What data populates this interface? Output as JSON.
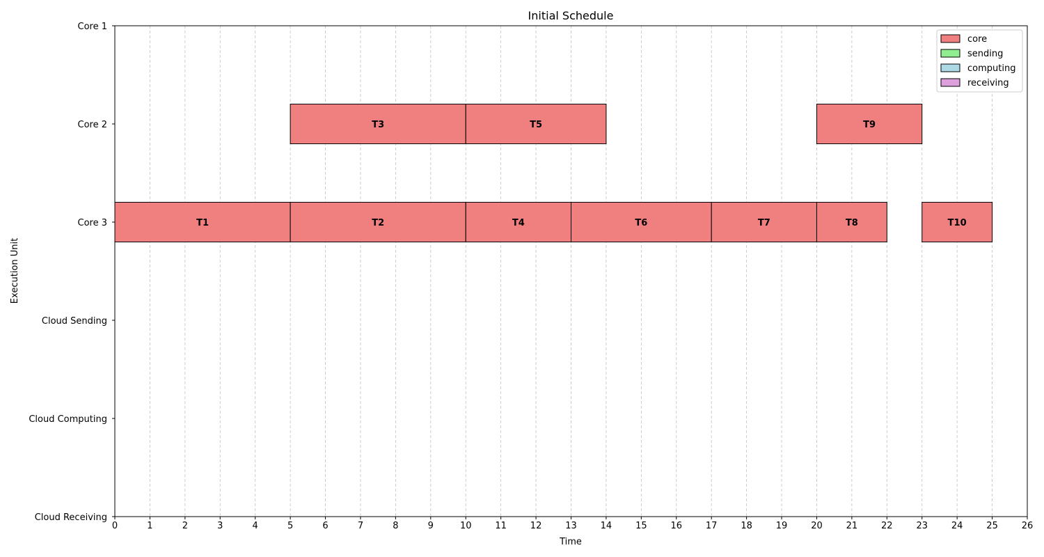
{
  "chart_data": {
    "type": "gantt",
    "title": "Initial Schedule",
    "xlabel": "Time",
    "ylabel": "Execution Unit",
    "xlim": [
      0,
      26
    ],
    "x_ticks": [
      0,
      1,
      2,
      3,
      4,
      5,
      6,
      7,
      8,
      9,
      10,
      11,
      12,
      13,
      14,
      15,
      16,
      17,
      18,
      19,
      20,
      21,
      22,
      23,
      24,
      25,
      26
    ],
    "rows": [
      "Core 1",
      "Core 2",
      "Core 3",
      "Cloud Sending",
      "Cloud Computing",
      "Cloud Receiving"
    ],
    "grid": "vertical dashed",
    "legend_position": "top-right",
    "legend": [
      {
        "name": "core",
        "color": "#f08080"
      },
      {
        "name": "sending",
        "color": "#90ee90"
      },
      {
        "name": "computing",
        "color": "#add8e6"
      },
      {
        "name": "receiving",
        "color": "#dda0dd"
      }
    ],
    "tasks": [
      {
        "label": "T1",
        "row": "Core 3",
        "start": 0,
        "end": 5,
        "kind": "core"
      },
      {
        "label": "T2",
        "row": "Core 3",
        "start": 5,
        "end": 10,
        "kind": "core"
      },
      {
        "label": "T3",
        "row": "Core 2",
        "start": 5,
        "end": 10,
        "kind": "core"
      },
      {
        "label": "T4",
        "row": "Core 3",
        "start": 10,
        "end": 13,
        "kind": "core"
      },
      {
        "label": "T5",
        "row": "Core 2",
        "start": 10,
        "end": 14,
        "kind": "core"
      },
      {
        "label": "T6",
        "row": "Core 3",
        "start": 13,
        "end": 17,
        "kind": "core"
      },
      {
        "label": "T7",
        "row": "Core 3",
        "start": 17,
        "end": 20,
        "kind": "core"
      },
      {
        "label": "T8",
        "row": "Core 3",
        "start": 20,
        "end": 22,
        "kind": "core"
      },
      {
        "label": "T9",
        "row": "Core 2",
        "start": 20,
        "end": 23,
        "kind": "core"
      },
      {
        "label": "T10",
        "row": "Core 3",
        "start": 23,
        "end": 25,
        "kind": "core"
      }
    ]
  }
}
